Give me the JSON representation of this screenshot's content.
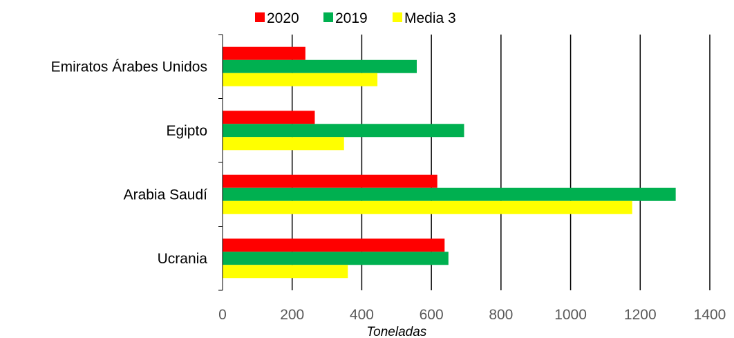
{
  "chart_data": {
    "type": "bar",
    "orientation": "horizontal",
    "categories": [
      "Ucrania",
      "Arabia Saudí",
      "Egipto",
      "Emiratos Árabes Unidos"
    ],
    "series": [
      {
        "name": "2020",
        "color": "#ff0000",
        "values": [
          638,
          617,
          265,
          238
        ]
      },
      {
        "name": "2019",
        "color": "#00b050",
        "values": [
          649,
          1302,
          694,
          558
        ]
      },
      {
        "name": "Media 3",
        "color": "#ffff00",
        "values": [
          360,
          1177,
          349,
          445
        ]
      }
    ],
    "xlabel": "Toneladas",
    "ylabel": "",
    "xlim": [
      0,
      1400
    ],
    "xticks": [
      "0",
      "200",
      "400",
      "600",
      "800",
      "1000",
      "1200",
      "1400"
    ],
    "grid": "vertical",
    "legend": "top"
  }
}
